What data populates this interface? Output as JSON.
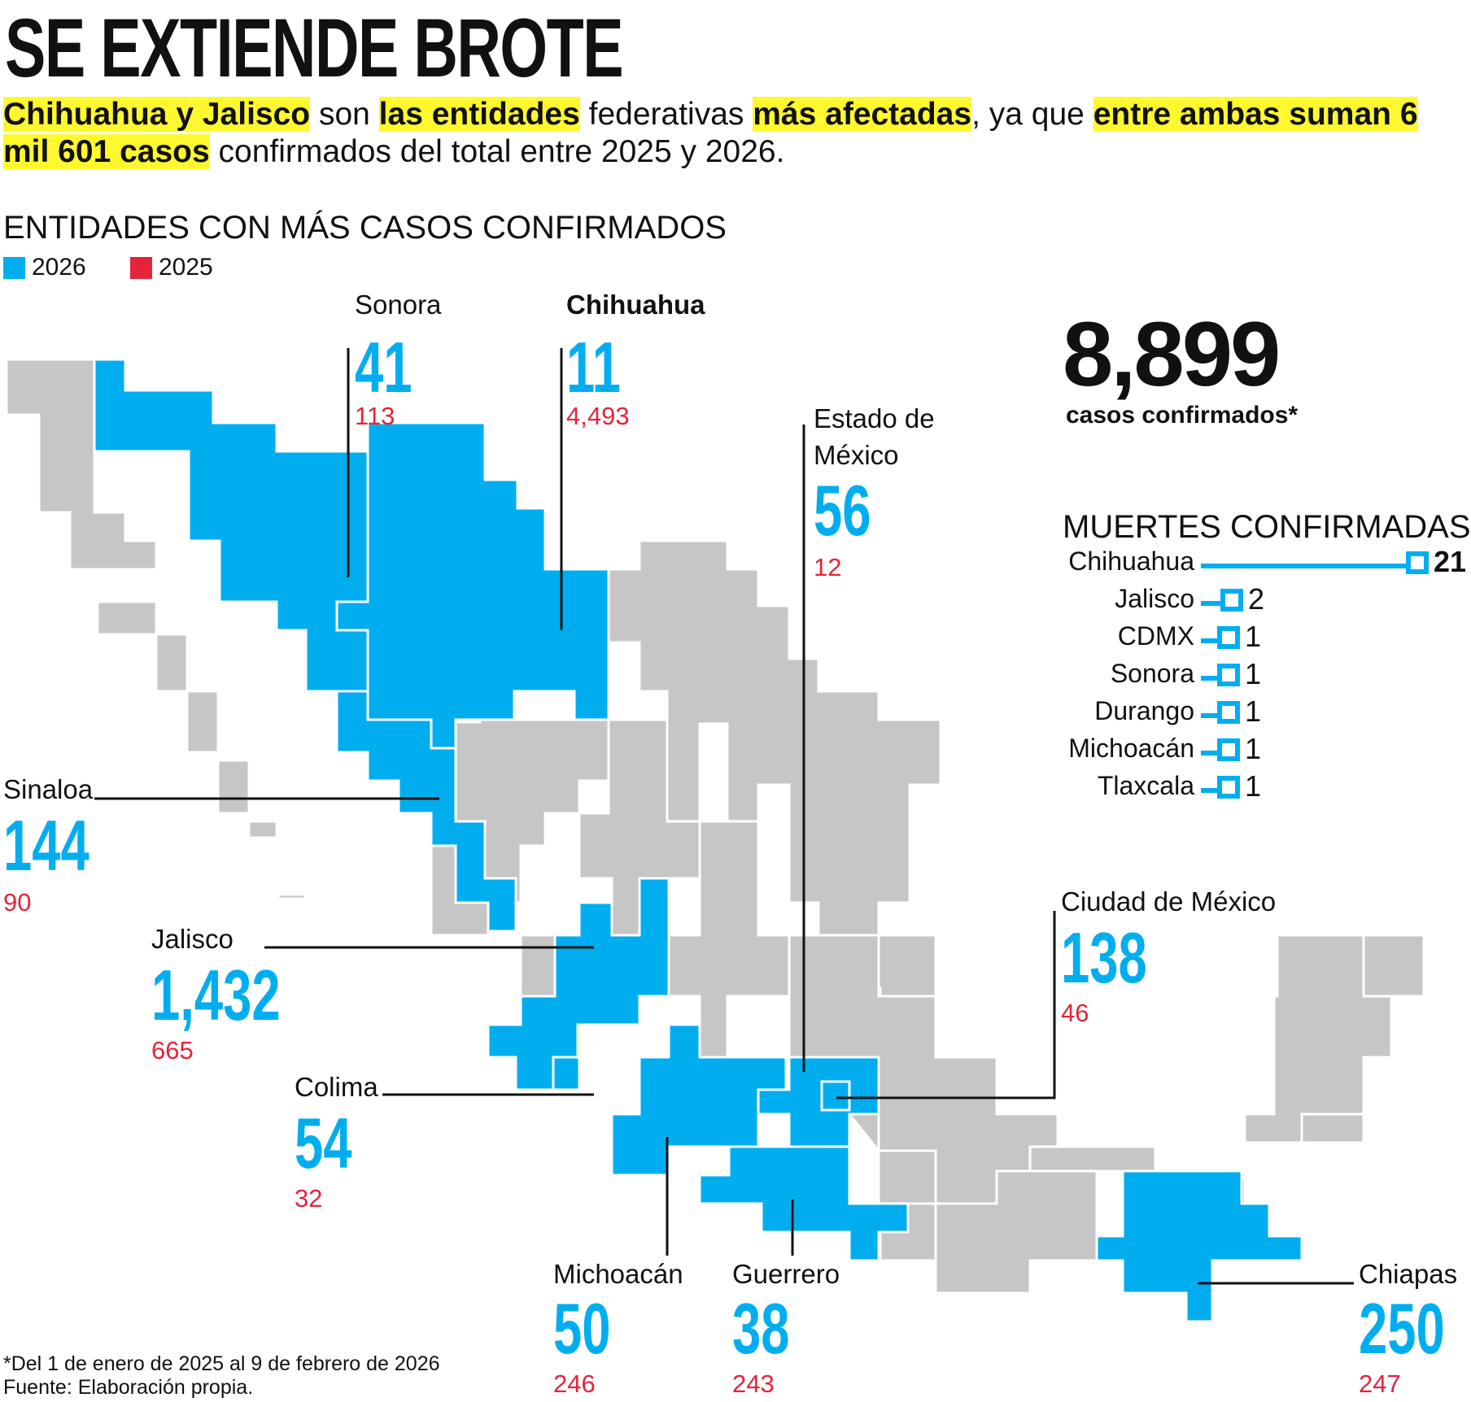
{
  "title": "SE EXTIENDE BROTE",
  "subtitle": {
    "s1": "Chihuahua y Jalisco",
    "s2": " son ",
    "s3": "las entidades",
    "s4": " federativas ",
    "s5": "más afectadas",
    "s6": ", ya que ",
    "s7": "entre ambas suman 6 mil 601 casos",
    "s8": " confirmados del total entre 2025 y 2026."
  },
  "section_title": "ENTIDADES CON MÁS CASOS CONFIRMADOS",
  "legend": [
    {
      "label": "2026",
      "color": "#00aeef"
    },
    {
      "label": "2025",
      "color": "#e5243b"
    }
  ],
  "total": {
    "value": "8,899",
    "label": "casos confirmados*"
  },
  "chart_data": [
    {
      "type": "table",
      "title": "ENTIDADES CON MÁS CASOS CONFIRMADOS",
      "series": [
        {
          "name": "2026",
          "color": "#00aeef"
        },
        {
          "name": "2025",
          "color": "#e5243b"
        }
      ],
      "rows": [
        {
          "state": "Sonora",
          "v2026": "41",
          "v2025": "113"
        },
        {
          "state": "Chihuahua",
          "v2026": "11",
          "v2025": "4,493"
        },
        {
          "state": "Estado de México",
          "v2026": "56",
          "v2025": "12"
        },
        {
          "state": "Sinaloa",
          "v2026": "144",
          "v2025": "90"
        },
        {
          "state": "Jalisco",
          "v2026": "1,432",
          "v2025": "665"
        },
        {
          "state": "Colima",
          "v2026": "54",
          "v2025": "32"
        },
        {
          "state": "Ciudad de México",
          "v2026": "138",
          "v2025": "46"
        },
        {
          "state": "Michoacán",
          "v2026": "50",
          "v2025": "246"
        },
        {
          "state": "Guerrero",
          "v2026": "38",
          "v2025": "243"
        },
        {
          "state": "Chiapas",
          "v2026": "250",
          "v2025": "247"
        }
      ]
    },
    {
      "type": "bar",
      "title": "MUERTES CONFIRMADAS",
      "categories": [
        "Chihuahua",
        "Jalisco",
        "CDMX",
        "Sonora",
        "Durango",
        "Michoacán",
        "Tlaxcala"
      ],
      "values": [
        21,
        2,
        1,
        1,
        1,
        1,
        1
      ]
    }
  ],
  "colors": {
    "highlight": "#fff82f",
    "map_gray": "#c6c6c6",
    "map_blue": "#00aeef",
    "red": "#e5243b"
  },
  "footnote": {
    "line1": "*Del 1 de enero de 2025 al 9 de febrero de 2026",
    "line2": "Fuente: Elaboración propia."
  }
}
